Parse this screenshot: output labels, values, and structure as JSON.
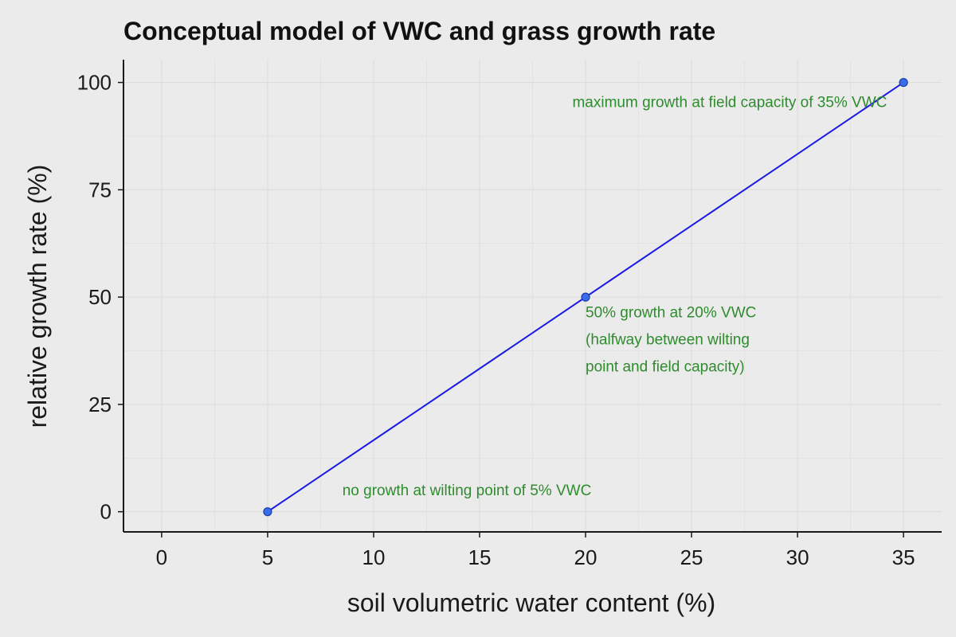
{
  "chart_data": {
    "type": "line",
    "title": "Conceptual model of VWC and grass growth rate",
    "xlabel": "soil volumetric water content (%)",
    "ylabel": "relative growth rate (%)",
    "xlim": [
      -1.8,
      36.8
    ],
    "ylim": [
      -4.7,
      105.3
    ],
    "xticks": [
      0,
      5,
      10,
      15,
      20,
      25,
      30,
      35
    ],
    "yticks": [
      0,
      25,
      50,
      75,
      100
    ],
    "xtick_labels": [
      "0",
      "5",
      "10",
      "15",
      "20",
      "25",
      "30",
      "35"
    ],
    "ytick_labels": [
      "0",
      "25",
      "50",
      "75",
      "100"
    ],
    "grid": true,
    "series": [
      {
        "x": [
          5,
          20,
          35
        ],
        "y": [
          0,
          50,
          100
        ],
        "color": "#1a1ae6",
        "marker_color": "#3a6de8"
      }
    ],
    "annotations": [
      {
        "lines": [
          "maximum growth at field capacity of 35% VWC"
        ],
        "x": 26.8,
        "y": 94.3,
        "anchor": "middle"
      },
      {
        "lines": [
          "50% growth at 20% VWC",
          "(halfway between wilting",
          "point and field capacity)"
        ],
        "x": 20,
        "y": 45.3,
        "anchor": "start"
      },
      {
        "lines": [
          "no growth at wilting point of 5% VWC"
        ],
        "x": 14.4,
        "y": 3.8,
        "anchor": "middle"
      }
    ],
    "colors": {
      "background": "#ebebeb",
      "grid": "#dcdcdc",
      "axis": "#1a1a1a",
      "annotation": "#2e8b2e"
    }
  }
}
